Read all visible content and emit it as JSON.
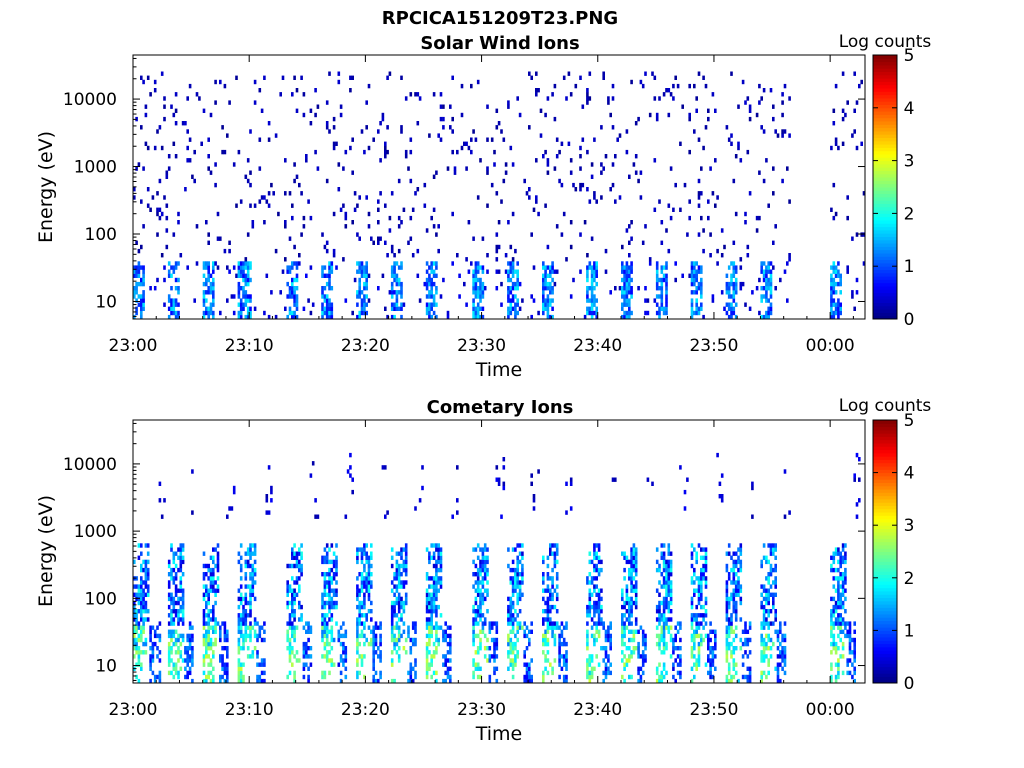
{
  "figure": {
    "title": "RPCICA151209T23.PNG"
  },
  "chart_data": [
    {
      "type": "heatmap",
      "title": "Solar Wind Ions",
      "xlabel": "Time",
      "ylabel": "Energy (eV)",
      "x_ticks": [
        "23:00",
        "23:10",
        "23:20",
        "23:30",
        "23:40",
        "23:50",
        "00:00"
      ],
      "x_tick_minutes": [
        0,
        10,
        20,
        30,
        40,
        50,
        60
      ],
      "xlim_minutes": [
        0,
        63
      ],
      "y_scale": "log",
      "y_ticks": [
        "10",
        "100",
        "1000",
        "10000"
      ],
      "y_tick_values": [
        10,
        100,
        1000,
        10000
      ],
      "ylim": [
        5.5,
        45000
      ],
      "colorbar": {
        "label": "Log counts",
        "ticks": [
          "0",
          "1",
          "2",
          "3",
          "4",
          "5"
        ],
        "range": [
          0,
          5
        ],
        "colormap": "jet"
      },
      "data_gap_minutes": [
        56.5,
        60
      ],
      "sweep_start_minutes": [
        0,
        3,
        6,
        9,
        13,
        16,
        19,
        22,
        25,
        29,
        32,
        35,
        39,
        42,
        45,
        48,
        51,
        54,
        60
      ],
      "sparse_high_energy_counts": true
    },
    {
      "type": "heatmap",
      "title": "Cometary Ions",
      "xlabel": "Time",
      "ylabel": "Energy (eV)",
      "x_ticks": [
        "23:00",
        "23:10",
        "23:20",
        "23:30",
        "23:40",
        "23:50",
        "00:00"
      ],
      "x_tick_minutes": [
        0,
        10,
        20,
        30,
        40,
        50,
        60
      ],
      "xlim_minutes": [
        0,
        63
      ],
      "y_scale": "log",
      "y_ticks": [
        "10",
        "100",
        "1000",
        "10000"
      ],
      "y_tick_values": [
        10,
        100,
        1000,
        10000
      ],
      "ylim": [
        5.5,
        45000
      ],
      "colorbar": {
        "label": "Log counts",
        "ticks": [
          "0",
          "1",
          "2",
          "3",
          "4",
          "5"
        ],
        "range": [
          0,
          5
        ],
        "colormap": "jet"
      },
      "data_gap_minutes": [
        56.5,
        60
      ],
      "sweep_start_minutes": [
        0,
        3,
        6,
        9,
        13,
        16,
        19,
        22,
        25,
        29,
        32,
        35,
        39,
        42,
        45,
        48,
        51,
        54,
        60
      ],
      "max_log_counts_approx": 3
    }
  ]
}
